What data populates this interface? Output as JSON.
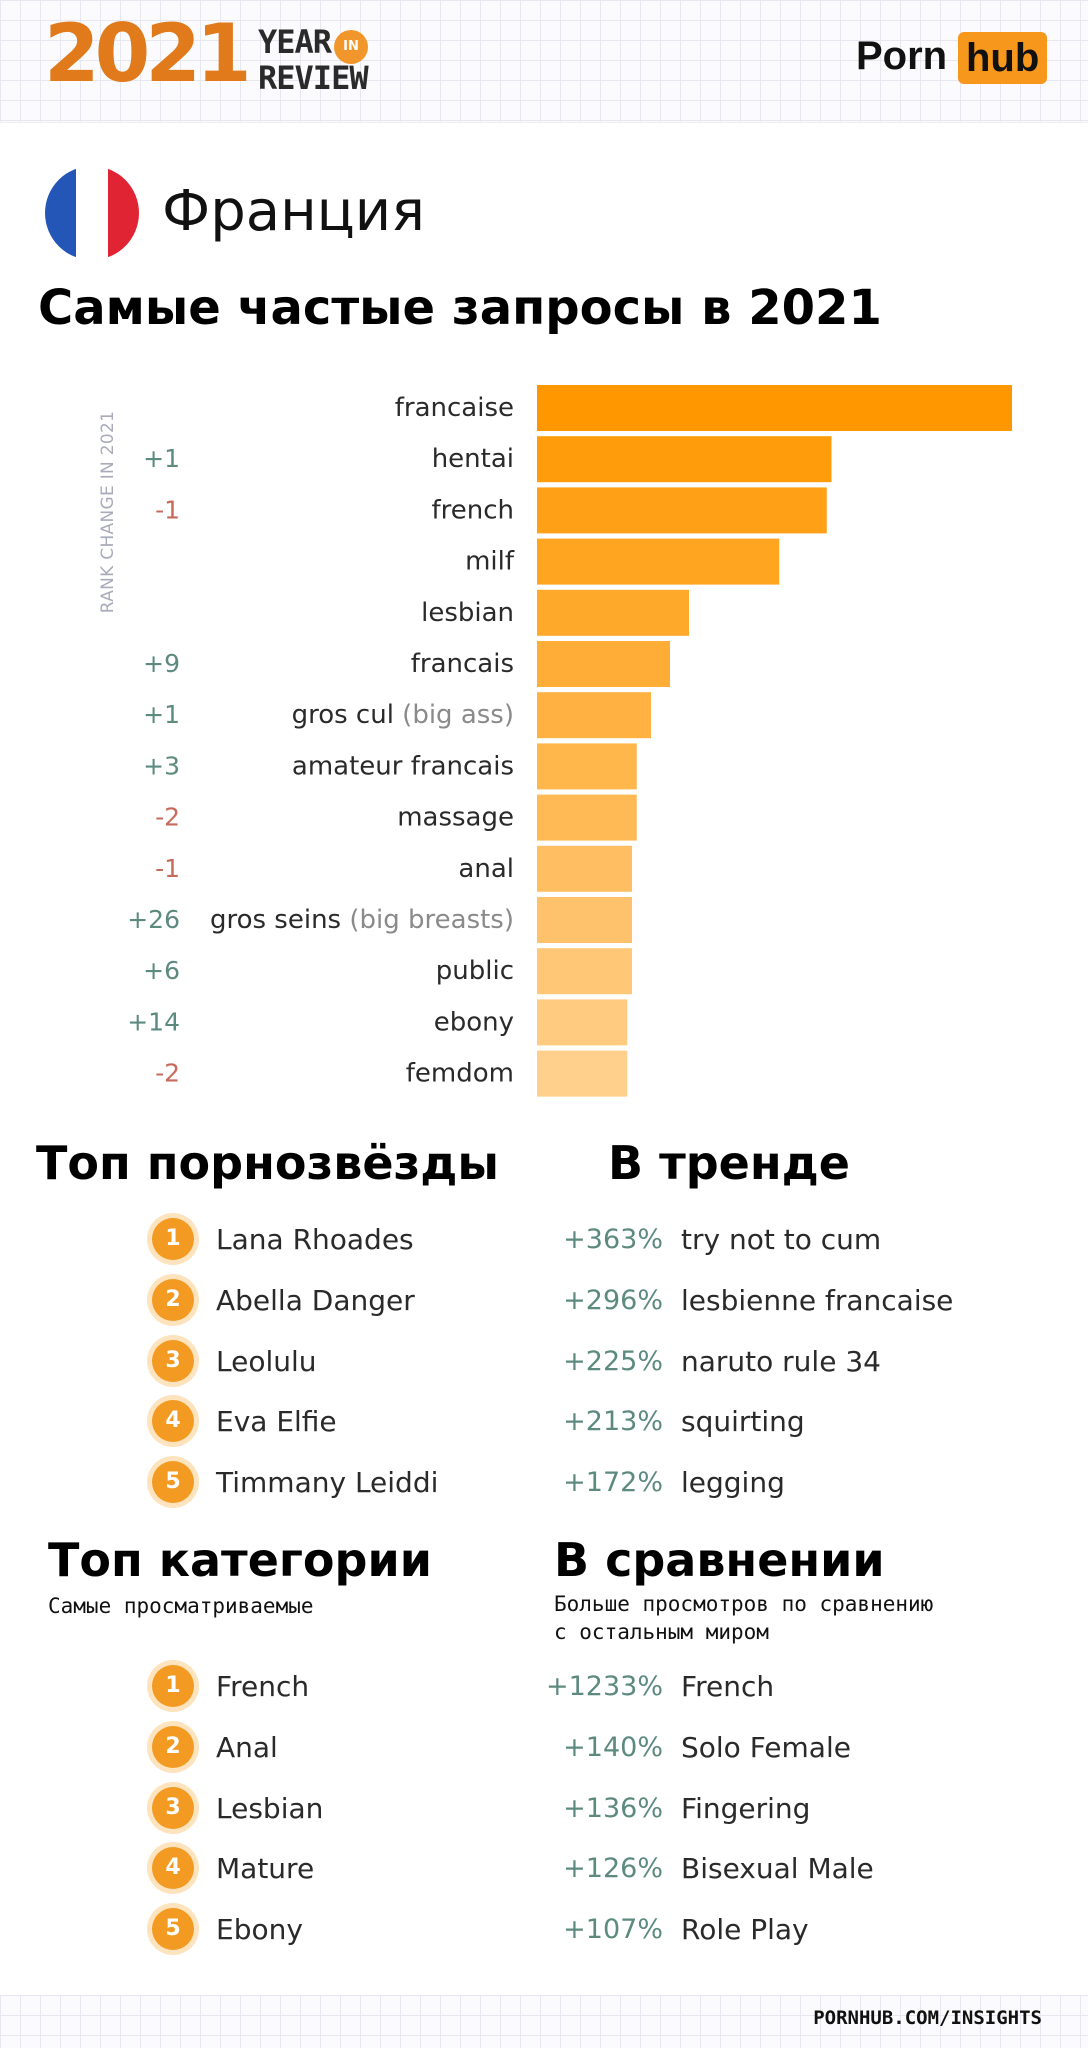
{
  "header": {
    "year": "2021",
    "year_word_1": "YEAR",
    "year_word_in": "IN",
    "year_word_2": "REVIEW",
    "brand_left": "Porn",
    "brand_right": "hub"
  },
  "colors": {
    "accent": "#f39a22",
    "bar_top": "#ff9800",
    "bar_bottom": "#ffcf8c",
    "positive_change": "#5d8a7f",
    "negative_change": "#c76a5c",
    "flag_blue": "#2456b8",
    "flag_white": "#ffffff",
    "flag_red": "#e02434"
  },
  "country": {
    "name": "Франция",
    "flag_icon": "france-flag-icon"
  },
  "chart_data": {
    "type": "bar",
    "orientation": "horizontal",
    "title": "Самые частые запросы в 2021",
    "rank_change_label": "RANK CHANGE IN 2021",
    "xlim": [
      0,
      100
    ],
    "categories": [
      {
        "term": "francaise",
        "extra": "",
        "change": ""
      },
      {
        "term": "hentai",
        "extra": "",
        "change": "+1"
      },
      {
        "term": "french",
        "extra": "",
        "change": "-1"
      },
      {
        "term": "milf",
        "extra": "",
        "change": ""
      },
      {
        "term": "lesbian",
        "extra": "",
        "change": ""
      },
      {
        "term": "francais",
        "extra": "",
        "change": "+9"
      },
      {
        "term": "gros cul",
        "extra": "(big ass)",
        "change": "+1"
      },
      {
        "term": "amateur francais",
        "extra": "",
        "change": "+3"
      },
      {
        "term": "massage",
        "extra": "",
        "change": "-2"
      },
      {
        "term": "anal",
        "extra": "",
        "change": "-1"
      },
      {
        "term": "gros seins",
        "extra": "(big breasts)",
        "change": "+26"
      },
      {
        "term": "public",
        "extra": "",
        "change": "+6"
      },
      {
        "term": "ebony",
        "extra": "",
        "change": "+14"
      },
      {
        "term": "femdom",
        "extra": "",
        "change": "-2"
      }
    ],
    "values": [
      100,
      62,
      61,
      51,
      32,
      28,
      24,
      21,
      21,
      20,
      20,
      20,
      19,
      19
    ]
  },
  "top_pornstars": {
    "heading": "Топ порнозвёзды",
    "items": [
      {
        "rank": "1",
        "name": "Lana Rhoades"
      },
      {
        "rank": "2",
        "name": "Abella Danger"
      },
      {
        "rank": "3",
        "name": "Leolulu"
      },
      {
        "rank": "4",
        "name": "Eva Elfie"
      },
      {
        "rank": "5",
        "name": "Timmany Leiddi"
      }
    ]
  },
  "trending": {
    "heading": "В тренде",
    "items": [
      {
        "pct": "+363%",
        "term": "try not to cum"
      },
      {
        "pct": "+296%",
        "term": "lesbienne francaise"
      },
      {
        "pct": "+225%",
        "term": "naruto rule 34"
      },
      {
        "pct": "+213%",
        "term": "squirting"
      },
      {
        "pct": "+172%",
        "term": "legging"
      }
    ]
  },
  "top_categories": {
    "heading": "Топ категории",
    "subtitle": "Самые просматриваемые",
    "items": [
      {
        "rank": "1",
        "name": "French"
      },
      {
        "rank": "2",
        "name": "Anal"
      },
      {
        "rank": "3",
        "name": "Lesbian"
      },
      {
        "rank": "4",
        "name": "Mature"
      },
      {
        "rank": "5",
        "name": "Ebony"
      }
    ]
  },
  "comparison": {
    "heading": "В сравнении",
    "subtitle_1": "Больше просмотров по сравнению",
    "subtitle_2": "с остальным миром",
    "items": [
      {
        "pct": "+1233%",
        "term": "French"
      },
      {
        "pct": "+140%",
        "term": "Solo Female"
      },
      {
        "pct": "+136%",
        "term": "Fingering"
      },
      {
        "pct": "+126%",
        "term": "Bisexual Male"
      },
      {
        "pct": "+107%",
        "term": "Role Play"
      }
    ]
  },
  "footer": {
    "url": "PORNHUB.COM/INSIGHTS"
  }
}
